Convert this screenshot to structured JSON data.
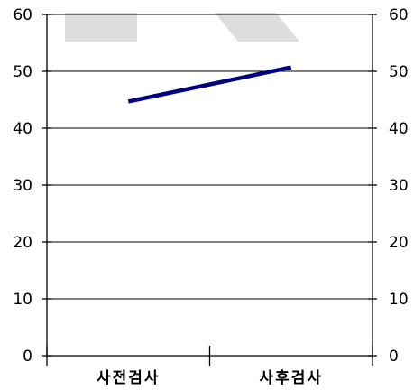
{
  "chart_data": {
    "type": "line",
    "categories": [
      "사전검사",
      "사후검사"
    ],
    "series": [
      {
        "values": [
          44.7,
          50.7
        ],
        "color": "#000080"
      }
    ],
    "yticks": [
      "0",
      "10",
      "20",
      "30",
      "40",
      "50",
      "60"
    ],
    "ylim": [
      0,
      60
    ],
    "title": "",
    "xlabel": "",
    "ylabel": "",
    "grid": true,
    "secondary_y_axis": true,
    "watermark_color": "#dddddd"
  }
}
